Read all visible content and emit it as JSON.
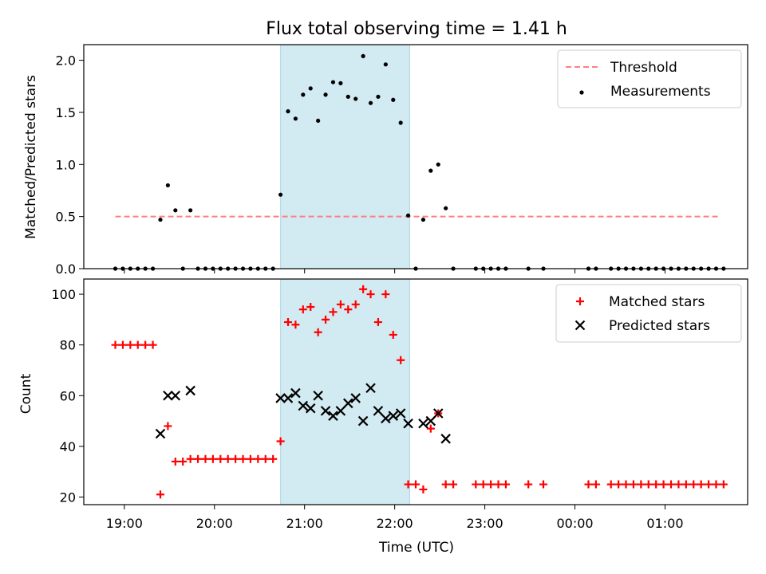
{
  "figure": {
    "title": "Flux total observing time = 1.41 h",
    "xlabel": "Time (UTC)",
    "colors": {
      "band": "#add8e6",
      "threshold": "#ff7f7f",
      "measurement": "#000000",
      "matched": "#ff0000",
      "predicted": "#000000"
    }
  },
  "chart_data": [
    {
      "type": "scatter",
      "panel": "top",
      "ylabel": "Matched/Predicted stars",
      "xlim": [
        "18:33",
        "01:55"
      ],
      "ylim": [
        0,
        2.15
      ],
      "yticks": [
        0.0,
        0.5,
        1.0,
        1.5,
        2.0
      ],
      "ytick_labels": [
        "0.0",
        "0.5",
        "1.0",
        "1.5",
        "2.0"
      ],
      "grid": false,
      "legend": "top-right",
      "shaded_interval": [
        "20:44",
        "22:10"
      ],
      "threshold": {
        "name": "Threshold",
        "value": 0.5,
        "x_range": [
          "18:54",
          "01:36"
        ]
      },
      "series": [
        {
          "name": "Measurements",
          "points": [
            [
              "18:54",
              0
            ],
            [
              "18:59",
              0
            ],
            [
              "19:04",
              0
            ],
            [
              "19:09",
              0
            ],
            [
              "19:14",
              0
            ],
            [
              "19:19",
              0
            ],
            [
              "19:24",
              0.47
            ],
            [
              "19:29",
              0.8
            ],
            [
              "19:34",
              0.56
            ],
            [
              "19:39",
              0
            ],
            [
              "19:44",
              0.56
            ],
            [
              "19:49",
              0
            ],
            [
              "19:54",
              0
            ],
            [
              "19:59",
              0
            ],
            [
              "20:04",
              0
            ],
            [
              "20:09",
              0
            ],
            [
              "20:14",
              0
            ],
            [
              "20:19",
              0
            ],
            [
              "20:24",
              0
            ],
            [
              "20:29",
              0
            ],
            [
              "20:34",
              0
            ],
            [
              "20:39",
              0
            ],
            [
              "20:44",
              0.71
            ],
            [
              "20:49",
              1.51
            ],
            [
              "20:54",
              1.44
            ],
            [
              "20:59",
              1.67
            ],
            [
              "21:04",
              1.73
            ],
            [
              "21:09",
              1.42
            ],
            [
              "21:14",
              1.67
            ],
            [
              "21:19",
              1.79
            ],
            [
              "21:24",
              1.78
            ],
            [
              "21:29",
              1.65
            ],
            [
              "21:34",
              1.63
            ],
            [
              "21:39",
              2.04
            ],
            [
              "21:44",
              1.59
            ],
            [
              "21:49",
              1.65
            ],
            [
              "21:54",
              1.96
            ],
            [
              "21:59",
              1.62
            ],
            [
              "22:04",
              1.4
            ],
            [
              "22:09",
              0.51
            ],
            [
              "22:14",
              0
            ],
            [
              "22:19",
              0.47
            ],
            [
              "22:24",
              0.94
            ],
            [
              "22:29",
              1.0
            ],
            [
              "22:34",
              0.58
            ],
            [
              "22:39",
              0
            ],
            [
              "22:54",
              0
            ],
            [
              "22:59",
              0
            ],
            [
              "23:04",
              0
            ],
            [
              "23:09",
              0
            ],
            [
              "23:14",
              0
            ],
            [
              "23:29",
              0
            ],
            [
              "23:39",
              0
            ],
            [
              "00:09",
              0
            ],
            [
              "00:14",
              0
            ],
            [
              "00:24",
              0
            ],
            [
              "00:29",
              0
            ],
            [
              "00:34",
              0
            ],
            [
              "00:39",
              0
            ],
            [
              "00:44",
              0
            ],
            [
              "00:49",
              0
            ],
            [
              "00:54",
              0
            ],
            [
              "00:59",
              0
            ],
            [
              "01:04",
              0
            ],
            [
              "01:09",
              0
            ],
            [
              "01:14",
              0
            ],
            [
              "01:19",
              0
            ],
            [
              "01:24",
              0
            ],
            [
              "01:29",
              0
            ],
            [
              "01:34",
              0
            ],
            [
              "01:39",
              0
            ]
          ]
        }
      ]
    },
    {
      "type": "scatter",
      "panel": "bottom",
      "ylabel": "Count",
      "xlim": [
        "18:33",
        "01:55"
      ],
      "ylim": [
        17,
        106
      ],
      "yticks": [
        20,
        40,
        60,
        80,
        100
      ],
      "ytick_labels": [
        "20",
        "40",
        "60",
        "80",
        "100"
      ],
      "xticks": [
        "19:00",
        "20:00",
        "21:00",
        "22:00",
        "23:00",
        "00:00",
        "01:00"
      ],
      "grid": false,
      "legend": "top-right",
      "shaded_interval": [
        "20:44",
        "22:10"
      ],
      "series": [
        {
          "name": "Matched stars",
          "marker": "plus",
          "points": [
            [
              "18:54",
              80
            ],
            [
              "18:59",
              80
            ],
            [
              "19:04",
              80
            ],
            [
              "19:09",
              80
            ],
            [
              "19:14",
              80
            ],
            [
              "19:19",
              80
            ],
            [
              "19:24",
              21
            ],
            [
              "19:29",
              48
            ],
            [
              "19:34",
              34
            ],
            [
              "19:39",
              34
            ],
            [
              "19:44",
              35
            ],
            [
              "19:49",
              35
            ],
            [
              "19:54",
              35
            ],
            [
              "19:59",
              35
            ],
            [
              "20:04",
              35
            ],
            [
              "20:09",
              35
            ],
            [
              "20:14",
              35
            ],
            [
              "20:19",
              35
            ],
            [
              "20:24",
              35
            ],
            [
              "20:29",
              35
            ],
            [
              "20:34",
              35
            ],
            [
              "20:39",
              35
            ],
            [
              "20:44",
              42
            ],
            [
              "20:49",
              89
            ],
            [
              "20:54",
              88
            ],
            [
              "20:59",
              94
            ],
            [
              "21:04",
              95
            ],
            [
              "21:09",
              85
            ],
            [
              "21:14",
              90
            ],
            [
              "21:19",
              93
            ],
            [
              "21:24",
              96
            ],
            [
              "21:29",
              94
            ],
            [
              "21:34",
              96
            ],
            [
              "21:39",
              102
            ],
            [
              "21:44",
              100
            ],
            [
              "21:49",
              89
            ],
            [
              "21:54",
              100
            ],
            [
              "21:59",
              84
            ],
            [
              "22:04",
              74
            ],
            [
              "22:09",
              25
            ],
            [
              "22:14",
              25
            ],
            [
              "22:19",
              23
            ],
            [
              "22:24",
              47
            ],
            [
              "22:29",
              53
            ],
            [
              "22:34",
              25
            ],
            [
              "22:39",
              25
            ],
            [
              "22:54",
              25
            ],
            [
              "22:59",
              25
            ],
            [
              "23:04",
              25
            ],
            [
              "23:09",
              25
            ],
            [
              "23:14",
              25
            ],
            [
              "23:29",
              25
            ],
            [
              "23:39",
              25
            ],
            [
              "00:09",
              25
            ],
            [
              "00:14",
              25
            ],
            [
              "00:24",
              25
            ],
            [
              "00:29",
              25
            ],
            [
              "00:34",
              25
            ],
            [
              "00:39",
              25
            ],
            [
              "00:44",
              25
            ],
            [
              "00:49",
              25
            ],
            [
              "00:54",
              25
            ],
            [
              "00:59",
              25
            ],
            [
              "01:04",
              25
            ],
            [
              "01:09",
              25
            ],
            [
              "01:14",
              25
            ],
            [
              "01:19",
              25
            ],
            [
              "01:24",
              25
            ],
            [
              "01:29",
              25
            ],
            [
              "01:34",
              25
            ],
            [
              "01:39",
              25
            ]
          ]
        },
        {
          "name": "Predicted stars",
          "marker": "x",
          "points": [
            [
              "19:24",
              45
            ],
            [
              "19:29",
              60
            ],
            [
              "19:34",
              60
            ],
            [
              "19:44",
              62
            ],
            [
              "20:44",
              59
            ],
            [
              "20:49",
              59
            ],
            [
              "20:54",
              61
            ],
            [
              "20:59",
              56
            ],
            [
              "21:04",
              55
            ],
            [
              "21:09",
              60
            ],
            [
              "21:14",
              54
            ],
            [
              "21:19",
              52
            ],
            [
              "21:24",
              54
            ],
            [
              "21:29",
              57
            ],
            [
              "21:34",
              59
            ],
            [
              "21:39",
              50
            ],
            [
              "21:44",
              63
            ],
            [
              "21:49",
              54
            ],
            [
              "21:54",
              51
            ],
            [
              "21:59",
              52
            ],
            [
              "22:04",
              53
            ],
            [
              "22:09",
              49
            ],
            [
              "22:19",
              49
            ],
            [
              "22:24",
              50
            ],
            [
              "22:29",
              53
            ],
            [
              "22:34",
              43
            ]
          ]
        }
      ]
    }
  ]
}
